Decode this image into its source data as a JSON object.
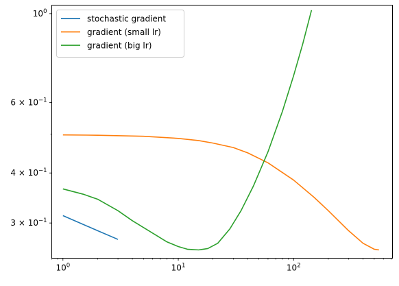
{
  "chart_data": {
    "type": "line",
    "title": "",
    "xlabel": "",
    "ylabel": "",
    "xscale": "log",
    "yscale": "log",
    "xlim": [
      0.8,
      720
    ],
    "ylim": [
      0.245,
      1.05
    ],
    "grid": false,
    "legend_position": "top-left",
    "x_ticks": [
      {
        "value": 1,
        "label": "10",
        "exp": "0"
      },
      {
        "value": 10,
        "label": "10",
        "exp": "1"
      },
      {
        "value": 100,
        "label": "10",
        "exp": "2"
      }
    ],
    "y_ticks": [
      {
        "value": 1.0,
        "label": "10",
        "exp": "0"
      },
      {
        "value": 0.6,
        "label": "6 × 10",
        "exp": "−1"
      },
      {
        "value": 0.4,
        "label": "4 × 10",
        "exp": "−1"
      },
      {
        "value": 0.3,
        "label": "3 × 10",
        "exp": "−1"
      }
    ],
    "series": [
      {
        "name": "stochastic gradient",
        "color": "#1f77b4",
        "points": [
          [
            1,
            0.313
          ],
          [
            2,
            0.287
          ],
          [
            3,
            0.273
          ]
        ]
      },
      {
        "name": "gradient (small lr)",
        "color": "#ff7f0e",
        "points": [
          [
            1,
            0.498
          ],
          [
            2,
            0.497
          ],
          [
            5,
            0.494
          ],
          [
            10,
            0.488
          ],
          [
            15,
            0.482
          ],
          [
            20,
            0.475
          ],
          [
            30,
            0.463
          ],
          [
            40,
            0.449
          ],
          [
            60,
            0.424
          ],
          [
            80,
            0.401
          ],
          [
            100,
            0.384
          ],
          [
            150,
            0.348
          ],
          [
            200,
            0.322
          ],
          [
            300,
            0.287
          ],
          [
            400,
            0.267
          ],
          [
            500,
            0.258
          ],
          [
            550,
            0.257
          ]
        ]
      },
      {
        "name": "gradient (big lr)",
        "color": "#2ca02c",
        "points": [
          [
            1,
            0.365
          ],
          [
            1.5,
            0.354
          ],
          [
            2,
            0.344
          ],
          [
            3,
            0.322
          ],
          [
            4,
            0.304
          ],
          [
            6,
            0.283
          ],
          [
            8,
            0.269
          ],
          [
            10,
            0.262
          ],
          [
            12,
            0.258
          ],
          [
            15,
            0.257
          ],
          [
            18,
            0.259
          ],
          [
            22,
            0.267
          ],
          [
            28,
            0.29
          ],
          [
            35,
            0.322
          ],
          [
            45,
            0.372
          ],
          [
            60,
            0.452
          ],
          [
            80,
            0.57
          ],
          [
            100,
            0.7
          ],
          [
            120,
            0.84
          ],
          [
            143,
            1.02
          ]
        ]
      }
    ]
  }
}
